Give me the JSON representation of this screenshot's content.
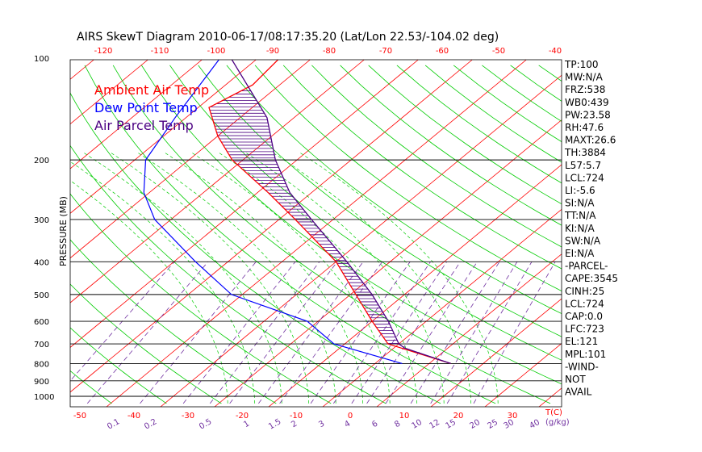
{
  "chart_data": {
    "type": "line",
    "title": "AIRS SkewT Diagram 2010-06-17/08:17:35.20 (Lat/Lon 22.53/-104.02 deg)",
    "ylabel": "PRESSURE (MB)",
    "pressure_ticks": [
      100,
      200,
      300,
      400,
      500,
      600,
      700,
      800,
      900,
      1000
    ],
    "top_temp_ticks": [
      -120,
      -110,
      -100,
      -90,
      -80,
      -70,
      -60,
      -50,
      -40
    ],
    "bottom_temp_ticks": [
      -50,
      -40,
      -30,
      -20,
      -10,
      0,
      10,
      20,
      30
    ],
    "bottom_unit_label": "T(C)",
    "mixing_ratio_ticks": [
      "0.1",
      "0.2",
      "0.5",
      "1",
      "1.5",
      "2",
      "3",
      "4",
      "6",
      "8",
      "10",
      "12",
      "15",
      "20",
      "25",
      "30",
      "40"
    ],
    "mixing_ratio_unit_label": "(g/kg)",
    "legend": [
      {
        "label": "Ambient Air Temp",
        "color": "#ff0000"
      },
      {
        "label": "Dew Point Temp",
        "color": "#0000ff"
      },
      {
        "label": "Air Parcel Temp",
        "color": "#4b0082"
      }
    ],
    "series": [
      {
        "name": "Ambient Air Temp",
        "color": "#ff0000",
        "points": [
          [
            100,
            -76
          ],
          [
            120,
            -75
          ],
          [
            140,
            -78
          ],
          [
            170,
            -70
          ],
          [
            200,
            -62
          ],
          [
            250,
            -48
          ],
          [
            300,
            -37
          ],
          [
            400,
            -20
          ],
          [
            500,
            -9
          ],
          [
            600,
            0
          ],
          [
            700,
            8
          ],
          [
            800,
            24
          ]
        ]
      },
      {
        "name": "Dew Point Temp",
        "color": "#0000ff",
        "points": [
          [
            100,
            -87
          ],
          [
            150,
            -82
          ],
          [
            200,
            -78
          ],
          [
            250,
            -71
          ],
          [
            300,
            -63
          ],
          [
            400,
            -46
          ],
          [
            500,
            -32
          ],
          [
            600,
            -12
          ],
          [
            700,
            -2
          ],
          [
            800,
            15
          ]
        ]
      },
      {
        "name": "Air Parcel Temp",
        "color": "#4b0082",
        "points": [
          [
            100,
            -85
          ],
          [
            150,
            -65
          ],
          [
            200,
            -54
          ],
          [
            250,
            -44
          ],
          [
            300,
            -34
          ],
          [
            400,
            -18
          ],
          [
            500,
            -6
          ],
          [
            600,
            3
          ],
          [
            700,
            10
          ],
          [
            720,
            12
          ],
          [
            800,
            24
          ]
        ]
      }
    ],
    "grid": true
  },
  "stats": [
    "TP:100",
    "MW:N/A",
    "FRZ:538",
    "WB0:439",
    "PW:23.58",
    "RH:47.6",
    "MAXT:26.6",
    "TH:3884",
    "L57:5.7",
    "LCL:724",
    "LI:-5.6",
    "SI:N/A",
    "TT:N/A",
    "KI:N/A",
    "SW:N/A",
    "EI:N/A",
    "-PARCEL-",
    "CAPE:3545",
    "CINH:25",
    "LCL:724",
    "CAP:0.0",
    "LFC:723",
    "EL:121",
    "MPL:101",
    "-WIND-",
    "NOT",
    "AVAIL"
  ],
  "colors": {
    "grid_isotherm": "#ff0000",
    "grid_adiabat": "#00cc00",
    "grid_isobar": "#000000",
    "mixing_ratio": "#7030a0",
    "hatch": "#4b0082"
  }
}
